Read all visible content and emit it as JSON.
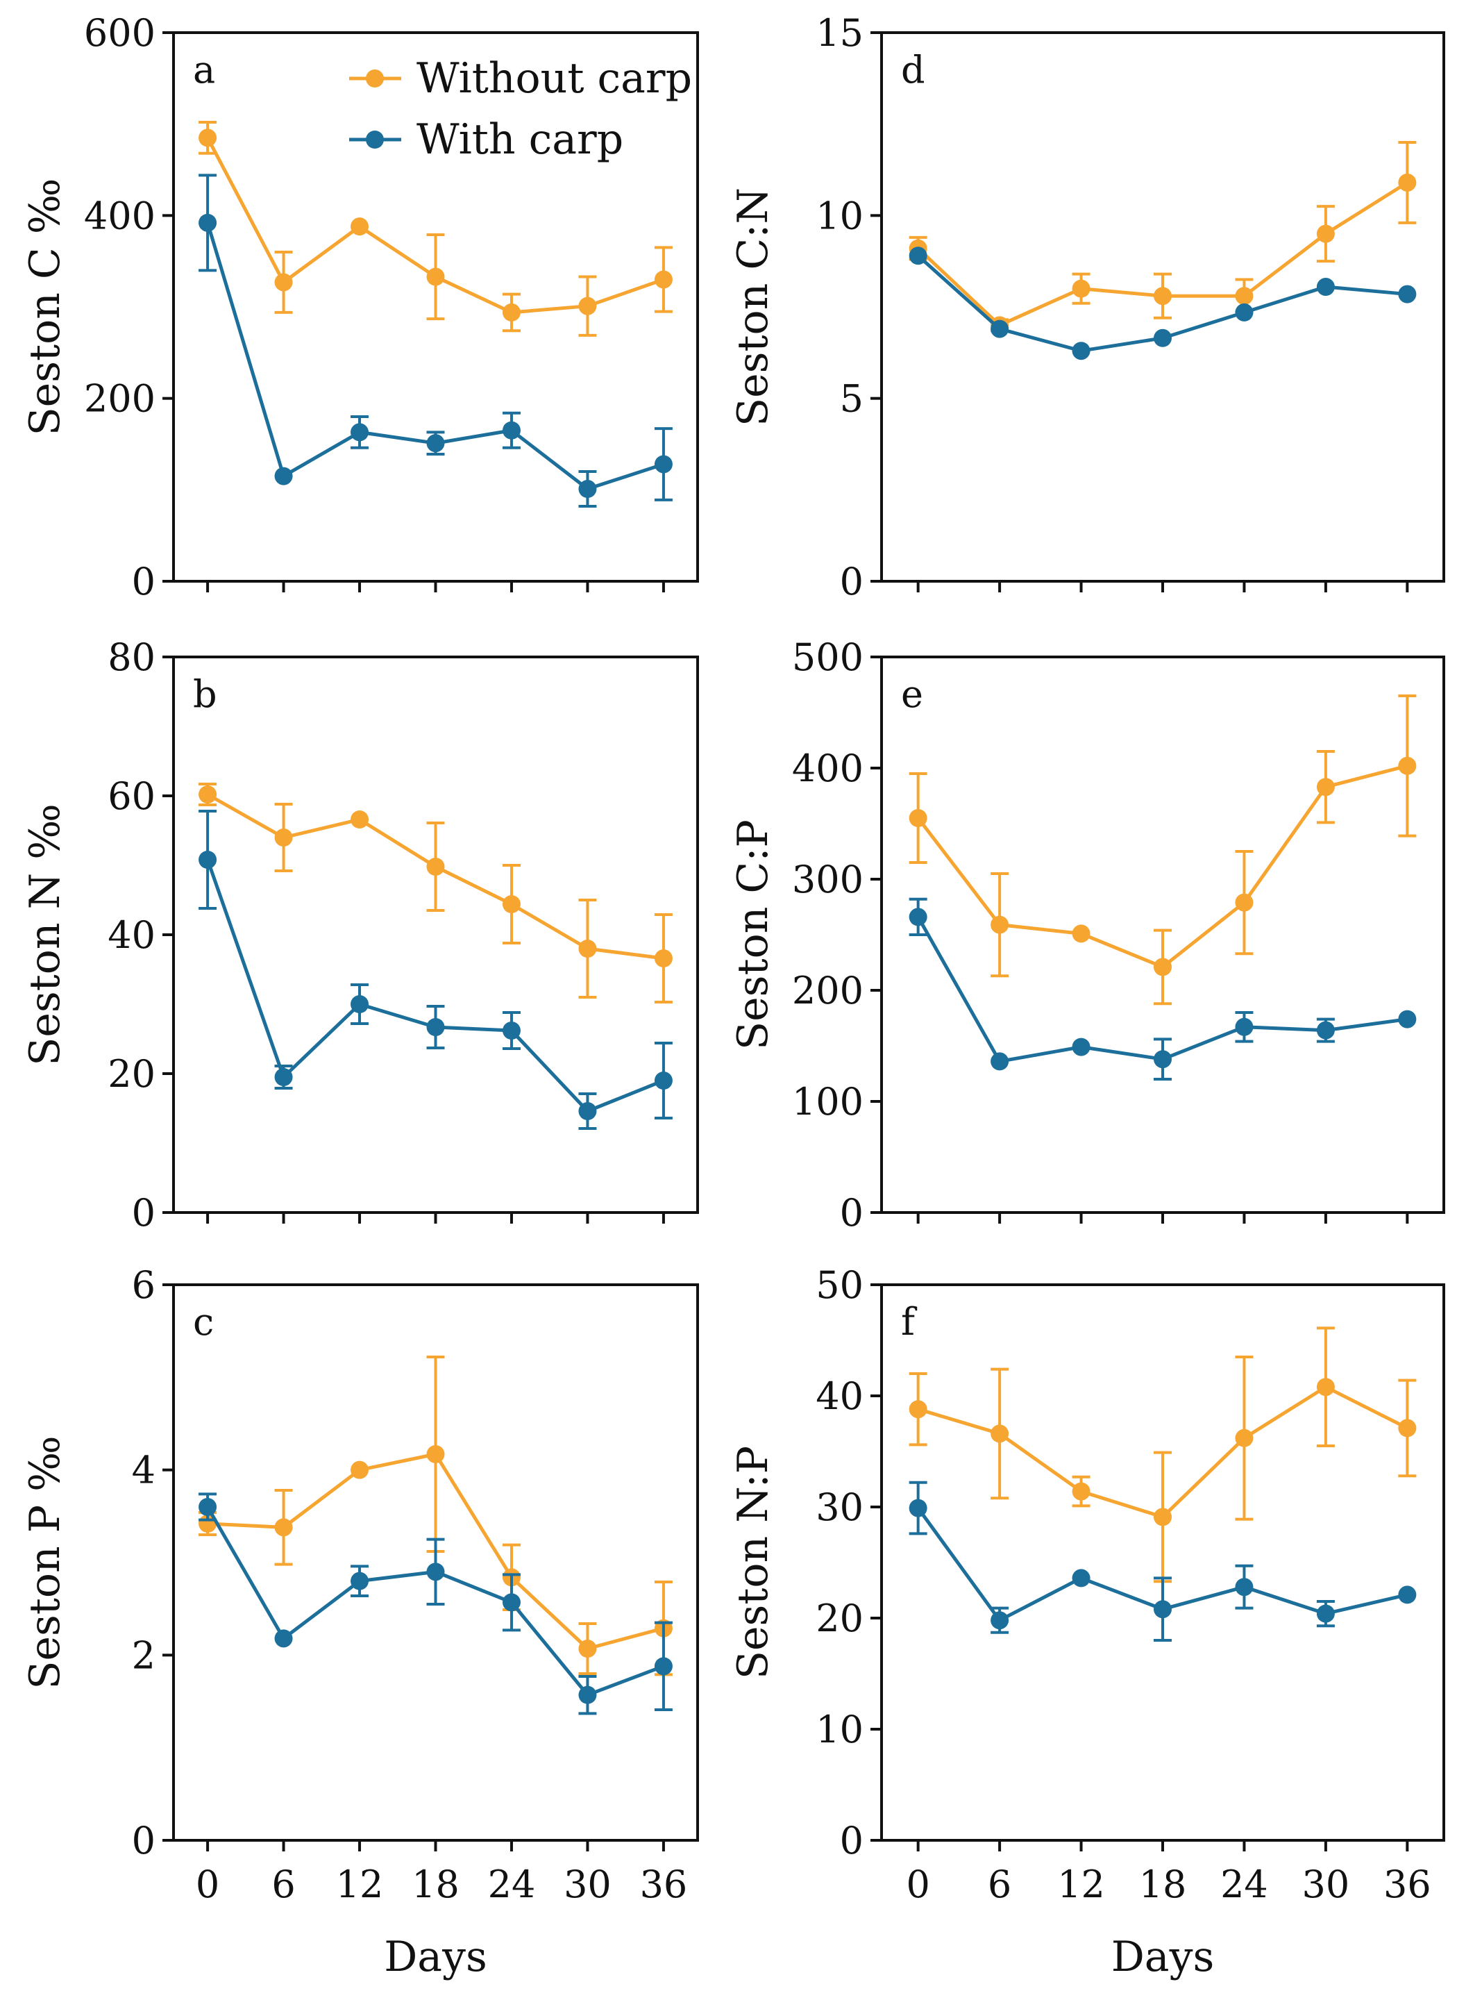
{
  "legend": [
    {
      "name": "Without carp",
      "color": "#F7A531"
    },
    {
      "name": "With carp",
      "color": "#1C6E9B"
    }
  ],
  "colors": {
    "without": "#F7A531",
    "with": "#1C6E9B",
    "axis": "#111111"
  },
  "chart_data": [
    {
      "panel": "a",
      "type": "line",
      "ylabel": "Seston C ‰",
      "xlabel": "",
      "x": [
        0,
        6,
        12,
        18,
        24,
        30,
        36
      ],
      "ylim": [
        0,
        600
      ],
      "yticks": [
        0,
        200,
        400,
        600
      ],
      "grid": false,
      "legend_position": "top-right",
      "series": [
        {
          "name": "Without carp",
          "values": [
            485,
            327,
            388,
            333,
            294,
            301,
            330
          ],
          "errors": [
            17,
            33,
            0,
            46,
            20,
            32,
            35
          ]
        },
        {
          "name": "With carp",
          "values": [
            392,
            115,
            163,
            151,
            165,
            101,
            128
          ],
          "errors": [
            52,
            0,
            17,
            12,
            19,
            19,
            39
          ]
        }
      ]
    },
    {
      "panel": "b",
      "type": "line",
      "ylabel": "Seston N ‰",
      "xlabel": "",
      "x": [
        0,
        6,
        12,
        18,
        24,
        30,
        36
      ],
      "ylim": [
        0,
        80
      ],
      "yticks": [
        0,
        20,
        40,
        60,
        80
      ],
      "grid": false,
      "series": [
        {
          "name": "Without carp",
          "values": [
            60.2,
            54,
            56.6,
            49.8,
            44.4,
            38,
            36.6
          ],
          "errors": [
            1.5,
            4.8,
            0,
            6.3,
            5.6,
            7,
            6.3
          ]
        },
        {
          "name": "With carp",
          "values": [
            50.8,
            19.5,
            30,
            26.7,
            26.2,
            14.6,
            19
          ],
          "errors": [
            7,
            1.6,
            2.8,
            3,
            2.6,
            2.5,
            5.4
          ]
        }
      ]
    },
    {
      "panel": "c",
      "type": "line",
      "ylabel": "Seston P ‰",
      "xlabel": "Days",
      "x": [
        0,
        6,
        12,
        18,
        24,
        30,
        36
      ],
      "ylim": [
        0,
        6
      ],
      "yticks": [
        0,
        2,
        4,
        6
      ],
      "grid": false,
      "series": [
        {
          "name": "Without carp",
          "values": [
            3.42,
            3.38,
            4,
            4.17,
            2.84,
            2.07,
            2.29
          ],
          "errors": [
            0.12,
            0.4,
            0,
            1.05,
            0.35,
            0.27,
            0.5
          ]
        },
        {
          "name": "With carp",
          "values": [
            3.6,
            2.18,
            2.8,
            2.9,
            2.57,
            1.57,
            1.88
          ],
          "errors": [
            0.14,
            0,
            0.16,
            0.35,
            0.3,
            0.2,
            0.47
          ]
        }
      ]
    },
    {
      "panel": "d",
      "type": "line",
      "ylabel": "Seston C:N",
      "xlabel": "",
      "x": [
        0,
        6,
        12,
        18,
        24,
        30,
        36
      ],
      "ylim": [
        0,
        15
      ],
      "yticks": [
        0,
        5,
        10,
        15
      ],
      "grid": false,
      "series": [
        {
          "name": "Without carp",
          "values": [
            9.1,
            7,
            8,
            7.8,
            7.8,
            9.5,
            10.9
          ],
          "errors": [
            0.3,
            0.15,
            0.4,
            0.6,
            0.45,
            0.75,
            1.1
          ]
        },
        {
          "name": "With carp",
          "values": [
            8.9,
            6.9,
            6.3,
            6.65,
            7.35,
            8.05,
            7.85
          ],
          "errors": [
            0,
            0,
            0,
            0,
            0,
            0,
            0
          ]
        }
      ]
    },
    {
      "panel": "e",
      "type": "line",
      "ylabel": "Seston C:P",
      "xlabel": "",
      "x": [
        0,
        6,
        12,
        18,
        24,
        30,
        36
      ],
      "ylim": [
        0,
        500
      ],
      "yticks": [
        0,
        100,
        200,
        300,
        400,
        500
      ],
      "grid": false,
      "series": [
        {
          "name": "Without carp",
          "values": [
            355,
            259,
            251,
            221,
            279,
            383,
            402
          ],
          "errors": [
            40,
            46,
            0,
            33,
            46,
            32,
            63
          ]
        },
        {
          "name": "With carp",
          "values": [
            266,
            136,
            149,
            138,
            167,
            164,
            174
          ],
          "errors": [
            16,
            0,
            0,
            18,
            13,
            10,
            0
          ]
        }
      ]
    },
    {
      "panel": "f",
      "type": "line",
      "ylabel": "Seston N:P",
      "xlabel": "Days",
      "x": [
        0,
        6,
        12,
        18,
        24,
        30,
        36
      ],
      "ylim": [
        0,
        50
      ],
      "yticks": [
        0,
        10,
        20,
        30,
        40,
        50
      ],
      "grid": false,
      "series": [
        {
          "name": "Without carp",
          "values": [
            38.8,
            36.6,
            31.4,
            29.1,
            36.2,
            40.8,
            37.1
          ],
          "errors": [
            3.2,
            5.8,
            1.3,
            5.8,
            7.3,
            5.3,
            4.3
          ]
        },
        {
          "name": "With carp",
          "values": [
            29.9,
            19.8,
            23.6,
            20.8,
            22.8,
            20.4,
            22.1
          ],
          "errors": [
            2.3,
            1.1,
            0,
            2.8,
            1.9,
            1.1,
            0
          ]
        }
      ]
    }
  ]
}
